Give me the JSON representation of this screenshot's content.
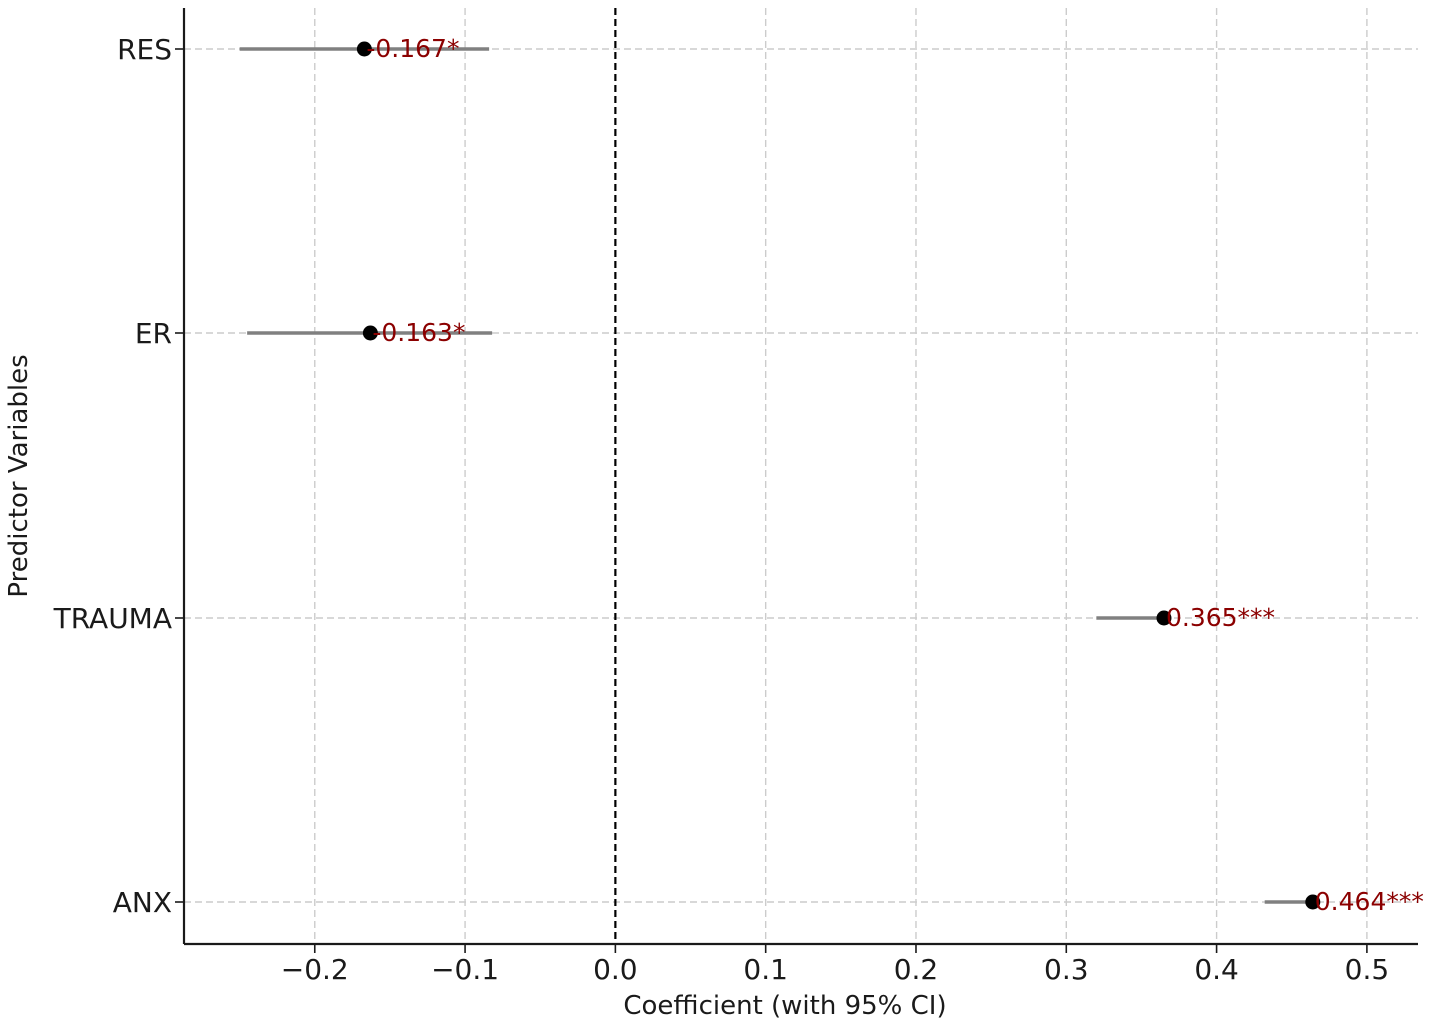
{
  "chart_data": {
    "type": "forest",
    "title": "",
    "xlabel": "Coefficient (with 95% CI)",
    "ylabel": "Predictor Variables",
    "xlim": [
      -0.287,
      0.534
    ],
    "xticks": [
      -0.2,
      -0.1,
      0.0,
      0.1,
      0.2,
      0.3,
      0.4,
      0.5
    ],
    "xtick_labels": [
      "−0.2",
      "−0.1",
      "0.0",
      "0.1",
      "0.2",
      "0.3",
      "0.4",
      "0.5"
    ],
    "categories": [
      "RES",
      "ER",
      "TRAUMA",
      "ANX"
    ],
    "estimates": [
      -0.167,
      -0.163,
      0.365,
      0.464
    ],
    "ci_lower": [
      -0.25,
      -0.245,
      0.32,
      0.432
    ],
    "ci_upper": [
      -0.084,
      -0.082,
      0.365,
      0.464
    ],
    "data_labels": [
      "-0.167*",
      "-0.163*",
      "0.365***",
      "0.464***"
    ],
    "reference_line": 0.0,
    "grid": true,
    "colors": {
      "point": "#000000",
      "ci": "#808080",
      "label": "#8b0000",
      "grid": "#cccccc",
      "axis": "#1a1a1a",
      "reference": "#000000"
    }
  }
}
